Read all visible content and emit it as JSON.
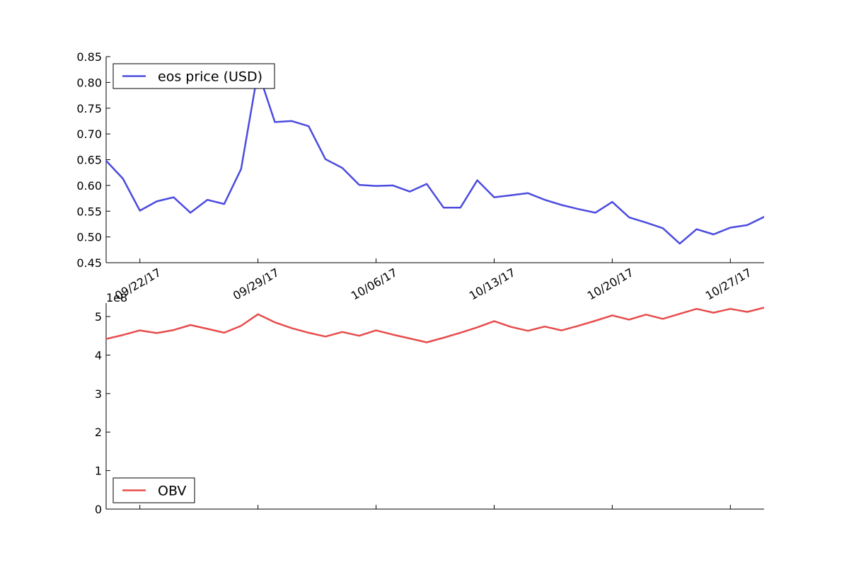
{
  "chart_data": [
    {
      "type": "line",
      "title": "",
      "xlabel": "",
      "ylabel": "",
      "ylim": [
        0.45,
        0.85
      ],
      "xlim": [
        "2017-09-20",
        "2017-10-29"
      ],
      "yticks": [
        "0.45",
        "0.50",
        "0.55",
        "0.60",
        "0.65",
        "0.70",
        "0.75",
        "0.80",
        "0.85"
      ],
      "xticks": [
        {
          "date": "2017-09-22",
          "label": "09/22/17"
        },
        {
          "date": "2017-09-29",
          "label": "09/29/17"
        },
        {
          "date": "2017-10-06",
          "label": "10/06/17"
        },
        {
          "date": "2017-10-13",
          "label": "10/13/17"
        },
        {
          "date": "2017-10-20",
          "label": "10/20/17"
        },
        {
          "date": "2017-10-27",
          "label": "10/27/17"
        }
      ],
      "grid": false,
      "legend": "upper-left",
      "x": [
        "2017-09-20",
        "2017-09-21",
        "2017-09-22",
        "2017-09-23",
        "2017-09-24",
        "2017-09-25",
        "2017-09-26",
        "2017-09-27",
        "2017-09-28",
        "2017-09-29",
        "2017-09-30",
        "2017-10-01",
        "2017-10-02",
        "2017-10-03",
        "2017-10-04",
        "2017-10-05",
        "2017-10-06",
        "2017-10-07",
        "2017-10-08",
        "2017-10-09",
        "2017-10-10",
        "2017-10-11",
        "2017-10-12",
        "2017-10-13",
        "2017-10-14",
        "2017-10-15",
        "2017-10-16",
        "2017-10-17",
        "2017-10-18",
        "2017-10-19",
        "2017-10-20",
        "2017-10-21",
        "2017-10-22",
        "2017-10-23",
        "2017-10-24",
        "2017-10-25",
        "2017-10-26",
        "2017-10-27",
        "2017-10-28",
        "2017-10-29"
      ],
      "series": [
        {
          "name": "eos price (USD)",
          "color": "#4b4be0",
          "values": [
            0.648,
            0.613,
            0.551,
            0.569,
            0.577,
            0.547,
            0.572,
            0.564,
            0.632,
            0.822,
            0.723,
            0.725,
            0.715,
            0.651,
            0.634,
            0.601,
            0.599,
            0.6,
            0.588,
            0.603,
            0.557,
            0.557,
            0.61,
            0.577,
            0.581,
            0.585,
            0.572,
            0.562,
            0.554,
            0.547,
            0.568,
            0.538,
            0.528,
            0.517,
            0.487,
            0.515,
            0.505,
            0.518,
            0.523,
            0.539
          ]
        }
      ]
    },
    {
      "type": "line",
      "title": "",
      "xlabel": "",
      "ylabel": "",
      "scale_label": "1e8",
      "ylim": [
        0,
        5.35
      ],
      "xlim": [
        "2017-09-20",
        "2017-10-29"
      ],
      "yticks": [
        "0",
        "1",
        "2",
        "3",
        "4",
        "5"
      ],
      "grid": false,
      "legend": "lower-left",
      "x": [
        "2017-09-20",
        "2017-09-21",
        "2017-09-22",
        "2017-09-23",
        "2017-09-24",
        "2017-09-25",
        "2017-09-26",
        "2017-09-27",
        "2017-09-28",
        "2017-09-29",
        "2017-09-30",
        "2017-10-01",
        "2017-10-02",
        "2017-10-03",
        "2017-10-04",
        "2017-10-05",
        "2017-10-06",
        "2017-10-07",
        "2017-10-08",
        "2017-10-09",
        "2017-10-10",
        "2017-10-11",
        "2017-10-12",
        "2017-10-13",
        "2017-10-14",
        "2017-10-15",
        "2017-10-16",
        "2017-10-17",
        "2017-10-18",
        "2017-10-19",
        "2017-10-20",
        "2017-10-21",
        "2017-10-22",
        "2017-10-23",
        "2017-10-24",
        "2017-10-25",
        "2017-10-26",
        "2017-10-27",
        "2017-10-28",
        "2017-10-29"
      ],
      "series": [
        {
          "name": "OBV",
          "color": "#e84c4c",
          "values": [
            4.42,
            4.52,
            4.64,
            4.57,
            4.65,
            4.78,
            4.68,
            4.58,
            4.76,
            5.06,
            4.85,
            4.7,
            4.58,
            4.48,
            4.6,
            4.5,
            4.64,
            4.53,
            4.43,
            4.33,
            4.45,
            4.58,
            4.72,
            4.88,
            4.73,
            4.63,
            4.74,
            4.64,
            4.76,
            4.89,
            5.03,
            4.92,
            5.05,
            4.94,
            5.07,
            5.2,
            5.1,
            5.2,
            5.12,
            5.23
          ]
        }
      ]
    }
  ]
}
